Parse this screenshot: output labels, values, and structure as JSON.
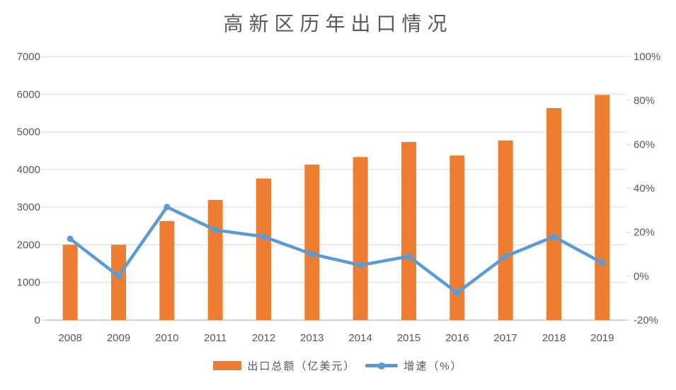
{
  "chart_data": {
    "type": "bar",
    "combo": "bar+line",
    "title": "高新区历年出口情况",
    "categories": [
      "2008",
      "2009",
      "2010",
      "2011",
      "2012",
      "2013",
      "2014",
      "2015",
      "2016",
      "2017",
      "2018",
      "2019"
    ],
    "series": [
      {
        "name": "出口总额（亿美元）",
        "type": "bar",
        "axis": "left",
        "color": "#ED7D31",
        "values": [
          2000,
          2000,
          2630,
          3190,
          3760,
          4130,
          4330,
          4730,
          4370,
          4770,
          5630,
          5980
        ]
      },
      {
        "name": "增速（%）",
        "type": "line",
        "axis": "right",
        "color": "#5B9BD5",
        "values": [
          17,
          0,
          31.5,
          21,
          18,
          10,
          5,
          9,
          -7.6,
          9,
          18,
          6
        ]
      }
    ],
    "left_axis": {
      "min": 0,
      "max": 7000,
      "step": 1000,
      "tick_labels": [
        "7000",
        "6000",
        "5000",
        "4000",
        "3000",
        "2000",
        "1000",
        "0"
      ]
    },
    "right_axis": {
      "min": -20,
      "max": 100,
      "step": 20,
      "tick_labels": [
        "100%",
        "80%",
        "60%",
        "40%",
        "20%",
        "0%",
        "-20%"
      ]
    },
    "grid": true,
    "legend_position": "bottom",
    "colors": {
      "bar": "#ED7D31",
      "line": "#5B9BD5",
      "gridline": "#D9D9D9",
      "axis_line": "#D2D2D2",
      "text": "#595959"
    }
  }
}
